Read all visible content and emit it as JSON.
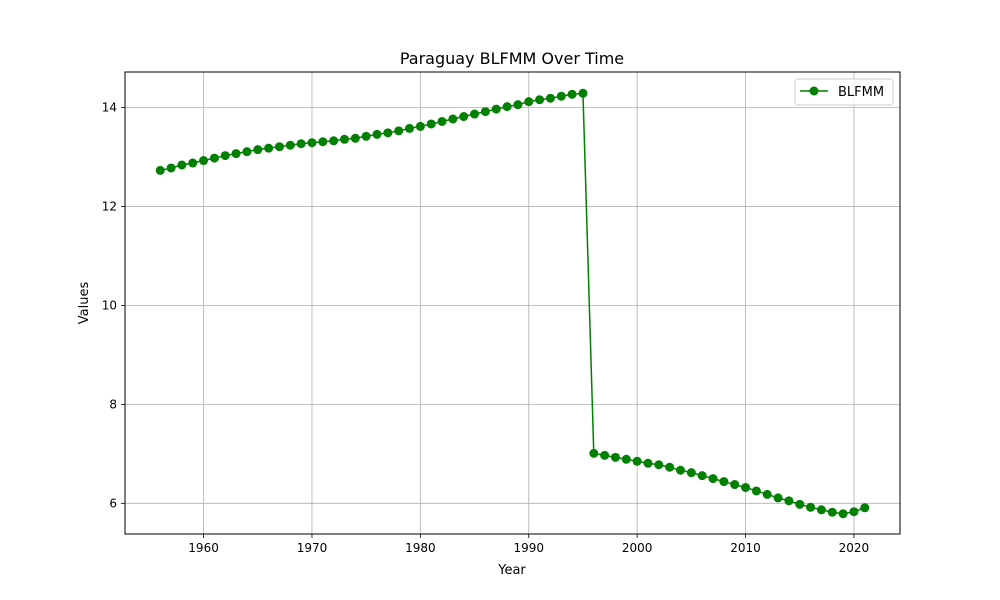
{
  "chart_data": {
    "type": "line",
    "title": "Paraguay BLFMM Over Time",
    "xlabel": "Year",
    "ylabel": "Values",
    "xlim": [
      1952.75,
      2024.25
    ],
    "ylim": [
      5.38,
      14.72
    ],
    "xticks": [
      1960,
      1970,
      1980,
      1990,
      2000,
      2010,
      2020
    ],
    "yticks": [
      6,
      8,
      10,
      12,
      14
    ],
    "grid": true,
    "legend": {
      "position": "top-right"
    },
    "series": [
      {
        "name": "BLFMM",
        "color": "#008000",
        "marker": "circle",
        "x": [
          1956,
          1957,
          1958,
          1959,
          1960,
          1961,
          1962,
          1963,
          1964,
          1965,
          1966,
          1967,
          1968,
          1969,
          1970,
          1971,
          1972,
          1973,
          1974,
          1975,
          1976,
          1977,
          1978,
          1979,
          1980,
          1981,
          1982,
          1983,
          1984,
          1985,
          1986,
          1987,
          1988,
          1989,
          1990,
          1991,
          1992,
          1993,
          1994,
          1995,
          1996,
          1997,
          1998,
          1999,
          2000,
          2001,
          2002,
          2003,
          2004,
          2005,
          2006,
          2007,
          2008,
          2009,
          2010,
          2011,
          2012,
          2013,
          2014,
          2015,
          2016,
          2017,
          2018,
          2019,
          2020,
          2021
        ],
        "y": [
          12.73,
          12.78,
          12.84,
          12.88,
          12.93,
          12.98,
          13.03,
          13.07,
          13.11,
          13.15,
          13.18,
          13.21,
          13.24,
          13.27,
          13.29,
          13.31,
          13.33,
          13.36,
          13.38,
          13.42,
          13.46,
          13.49,
          13.53,
          13.58,
          13.62,
          13.67,
          13.72,
          13.77,
          13.82,
          13.87,
          13.92,
          13.97,
          14.02,
          14.06,
          14.12,
          14.16,
          14.19,
          14.23,
          14.27,
          14.29,
          7.01,
          6.97,
          6.93,
          6.89,
          6.85,
          6.81,
          6.78,
          6.73,
          6.67,
          6.62,
          6.56,
          6.5,
          6.44,
          6.38,
          6.32,
          6.25,
          6.18,
          6.11,
          6.05,
          5.98,
          5.92,
          5.87,
          5.82,
          5.79,
          5.83,
          5.91
        ]
      }
    ]
  }
}
